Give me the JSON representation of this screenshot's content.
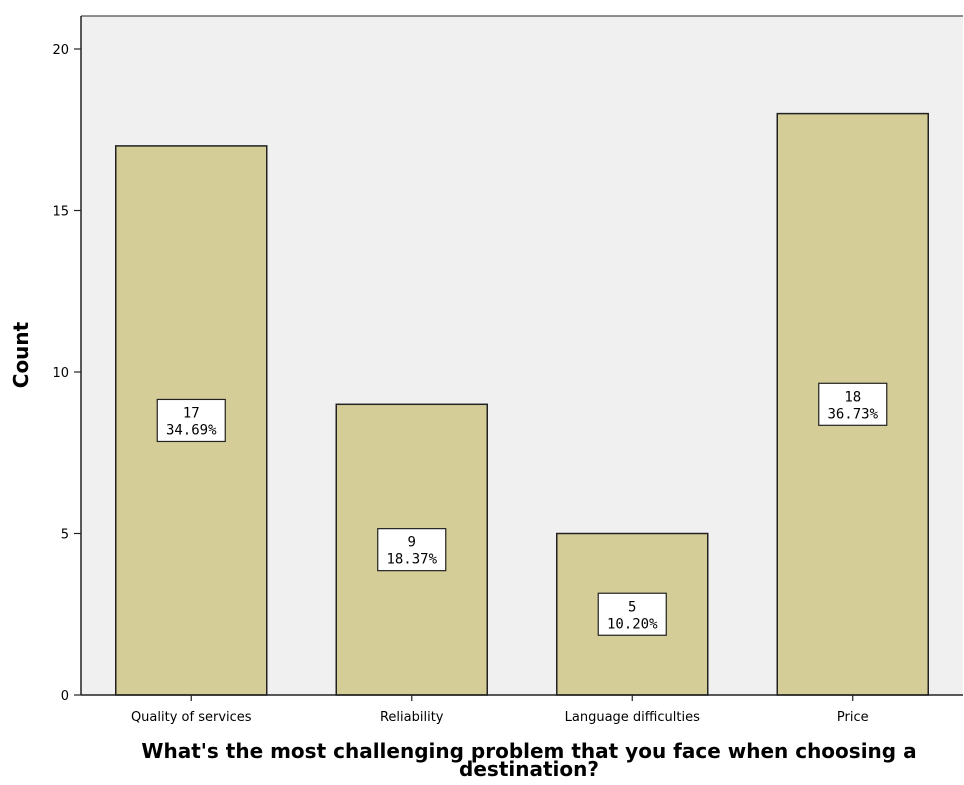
{
  "chart_data": {
    "type": "bar",
    "categories": [
      "Quality of services",
      "Reliability",
      "Language difficulties",
      "Price"
    ],
    "values": [
      17,
      9,
      5,
      18
    ],
    "percents": [
      "34.69%",
      "18.37%",
      "10.20%",
      "36.73%"
    ],
    "xlabel_lines": [
      "What's the most challenging problem that you face when choosing a",
      "destination?"
    ],
    "ylabel": "Count",
    "ylim": [
      0,
      20
    ],
    "yticks": [
      0,
      5,
      10,
      15,
      20
    ],
    "grid": false,
    "colors": {
      "bar_fill": "#d4cd97",
      "bar_stroke": "#222222",
      "plot_background": "#f0f0f0",
      "label_box": "#ffffff"
    }
  }
}
